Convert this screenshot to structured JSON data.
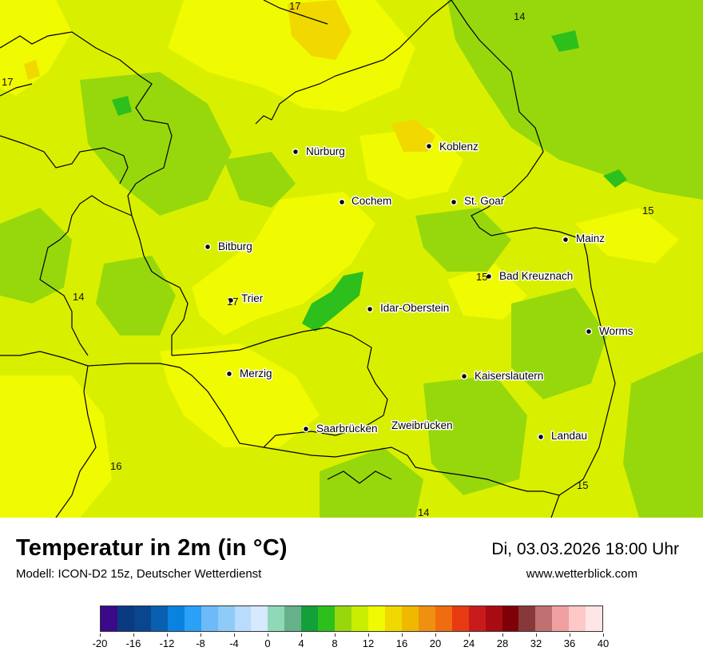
{
  "map": {
    "cities": [
      {
        "name": "Nürburg"
      },
      {
        "name": "Koblenz"
      },
      {
        "name": "Cochem"
      },
      {
        "name": "St. Goar"
      },
      {
        "name": "Mainz"
      },
      {
        "name": "Bitburg"
      },
      {
        "name": "Bad Kreuznach"
      },
      {
        "name": "Trier"
      },
      {
        "name": "Idar-Oberstein"
      },
      {
        "name": "Worms"
      },
      {
        "name": "Merzig"
      },
      {
        "name": "Kaiserslautern"
      },
      {
        "name": "Saarbrücken"
      },
      {
        "name": "Zweibrücken"
      },
      {
        "name": "Landau"
      }
    ],
    "isotherm_labels": [
      "17",
      "14",
      "17",
      "15",
      "14",
      "17",
      "15",
      "16",
      "15",
      "14"
    ]
  },
  "header": {
    "title": "Temperatur in 2m (in °C)",
    "subtitle": "Modell: ICON-D2 15z, Deutscher Wetterdienst",
    "datetime": "Di, 03.03.2026 18:00 Uhr",
    "website": "www.wetterblick.com"
  },
  "legend": {
    "tick_labels": [
      "-20",
      "-16",
      "-12",
      "-8",
      "-4",
      "0",
      "4",
      "8",
      "12",
      "16",
      "20",
      "24",
      "28",
      "32",
      "36",
      "40"
    ],
    "colors": [
      "#3a0a88",
      "#0a3a80",
      "#0a4590",
      "#0a5fb0",
      "#0a82e0",
      "#2aa0f6",
      "#6cbaf8",
      "#8fcbf9",
      "#b8dcfb",
      "#d6e9fd",
      "#8fd8b8",
      "#66b08a",
      "#12a03a",
      "#2dbf1c",
      "#97d80c",
      "#c9ee00",
      "#f0fa00",
      "#f0d800",
      "#f0b800",
      "#f09010",
      "#f06c10",
      "#e83a10",
      "#c81c1c",
      "#a80c12",
      "#800008",
      "#883838",
      "#c07070",
      "#f0a0a0",
      "#ffc8c8",
      "#ffe6e6"
    ]
  }
}
